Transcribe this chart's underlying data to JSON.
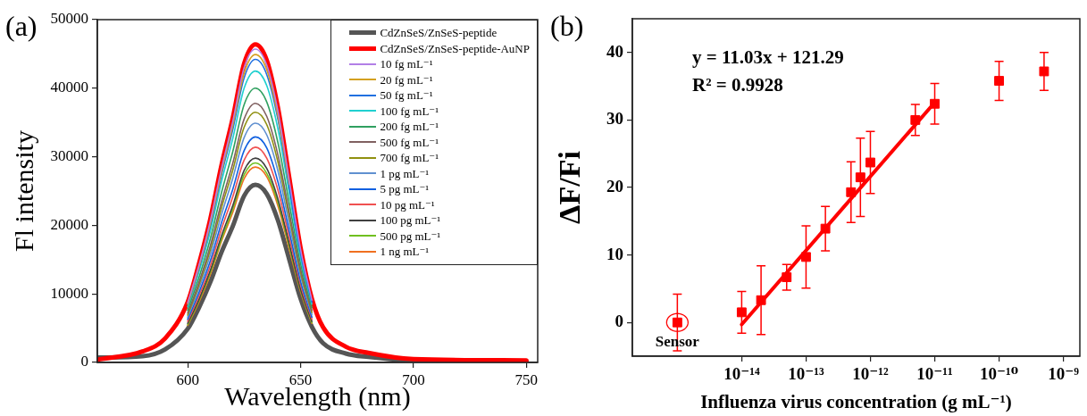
{
  "chart_data": [
    {
      "type": "line",
      "title": "(a)",
      "xlabel": "Wavelength (nm)",
      "ylabel": "Fl intensity",
      "x": [
        560,
        580,
        590,
        600,
        605,
        610,
        615,
        620,
        625,
        630,
        635,
        640,
        645,
        650,
        655,
        660,
        670,
        680,
        700,
        750
      ],
      "xlim": [
        560,
        755
      ],
      "ylim": [
        0,
        50000
      ],
      "xticks": [
        600,
        650,
        700,
        750
      ],
      "yticks": [
        0,
        10000,
        20000,
        30000,
        40000,
        50000
      ],
      "legend": "top right",
      "grid": false,
      "marker": "none",
      "series": [
        {
          "name": "CdZnSeS/ZnSeS-peptide",
          "color": "#555555",
          "values": [
            700,
            900,
            1900,
            4900,
            8000,
            11700,
            16100,
            19900,
            24300,
            25900,
            24600,
            20700,
            15000,
            9300,
            5200,
            2800,
            1300,
            800,
            300,
            200
          ]
        },
        {
          "name": "CdZnSeS/ZnSeS-peptide-AuNP",
          "color": "#ff0000",
          "values": [
            400,
            1600,
            3500,
            8800,
            14400,
            20900,
            28800,
            35700,
            43600,
            46400,
            44100,
            37100,
            26900,
            16700,
            9300,
            5100,
            2300,
            1400,
            500,
            300
          ]
        },
        {
          "name": "10 fg mL⁻¹",
          "color": "#b27fe6",
          "values": [
            null,
            null,
            null,
            8700,
            14200,
            20600,
            28300,
            35200,
            43000,
            45700,
            43400,
            36600,
            26500,
            16500,
            9100,
            null,
            null,
            null,
            null,
            null
          ]
        },
        {
          "name": "20 fg mL⁻¹",
          "color": "#d4a020",
          "values": [
            null,
            null,
            null,
            8500,
            13900,
            20200,
            27800,
            34600,
            42200,
            44900,
            42700,
            35900,
            26000,
            null,
            null,
            null,
            null,
            null,
            null,
            null
          ]
        },
        {
          "name": "50 fg mL⁻¹",
          "color": "#2070e0",
          "values": [
            null,
            null,
            null,
            8400,
            13700,
            19900,
            27400,
            34000,
            41500,
            44200,
            42000,
            35400,
            25600,
            15900,
            8800,
            null,
            null,
            null,
            null,
            null
          ]
        },
        {
          "name": "100 fg mL⁻¹",
          "color": "#20d0d0",
          "values": [
            null,
            null,
            null,
            8100,
            13200,
            19100,
            26400,
            32700,
            40000,
            42500,
            40400,
            34000,
            24700,
            15300,
            8500,
            null,
            null,
            null,
            null,
            null
          ]
        },
        {
          "name": "200 fg mL⁻¹",
          "color": "#30a060",
          "values": [
            null,
            null,
            null,
            7600,
            12400,
            18000,
            24800,
            30800,
            37600,
            40000,
            38000,
            32000,
            23200,
            14400,
            8000,
            null,
            null,
            null,
            null,
            null
          ]
        },
        {
          "name": "500 fg mL⁻¹",
          "color": "#806060",
          "values": [
            null,
            null,
            null,
            7200,
            11700,
            17000,
            23400,
            29100,
            35500,
            37800,
            35900,
            30200,
            21900,
            13600,
            7600,
            null,
            null,
            null,
            null,
            null
          ]
        },
        {
          "name": "700 fg mL⁻¹",
          "color": "#909010",
          "values": [
            null,
            null,
            null,
            6900,
            11300,
            16400,
            22600,
            28100,
            34300,
            36500,
            34700,
            29200,
            21200,
            13100,
            7300,
            null,
            null,
            null,
            null,
            null
          ]
        },
        {
          "name": "1 pg mL⁻¹",
          "color": "#6090d0",
          "values": [
            null,
            null,
            null,
            6600,
            10800,
            15700,
            21600,
            26900,
            32800,
            34900,
            33200,
            27900,
            20200,
            12600,
            7000,
            null,
            null,
            null,
            null,
            null
          ]
        },
        {
          "name": "5 pg mL⁻¹",
          "color": "#1060e0",
          "values": [
            null,
            null,
            null,
            6300,
            10200,
            14800,
            20400,
            25300,
            30900,
            32900,
            31300,
            26300,
            19100,
            11800,
            6600,
            null,
            null,
            null,
            null,
            null
          ]
        },
        {
          "name": "10 pg mL⁻¹",
          "color": "#f05050",
          "values": [
            null,
            null,
            null,
            6000,
            9700,
            14100,
            19500,
            24200,
            29500,
            31400,
            29800,
            25100,
            18200,
            11300,
            6300,
            null,
            null,
            null,
            null,
            null
          ]
        },
        {
          "name": "100 pg mL⁻¹",
          "color": "#404040",
          "values": [
            null,
            null,
            null,
            5700,
            9200,
            13400,
            18500,
            22900,
            28000,
            29800,
            28300,
            23800,
            17300,
            10700,
            6000,
            null,
            null,
            null,
            null,
            null
          ]
        },
        {
          "name": "500 pg mL⁻¹",
          "color": "#70c020",
          "values": [
            null,
            null,
            null,
            5500,
            9000,
            13100,
            18000,
            22400,
            27400,
            29100,
            27600,
            23300,
            16900,
            10500,
            5800,
            null,
            null,
            null,
            null,
            null
          ]
        },
        {
          "name": "1 ng mL⁻¹",
          "color": "#f07020",
          "values": [
            null,
            null,
            null,
            5400,
            8800,
            12800,
            17700,
            21900,
            26800,
            28500,
            27100,
            22800,
            16500,
            10300,
            5700,
            null,
            null,
            null,
            null,
            null
          ]
        }
      ]
    },
    {
      "type": "scatter",
      "title": "(b)",
      "xlabel": "Influenza virus concentration (g mL⁻¹)",
      "ylabel": "ΔF/Fi",
      "log": "x",
      "xlim": [
        2e-16,
        1.8e-09
      ],
      "ylim": [
        -5,
        45
      ],
      "xticks": [
        {
          "value": 1e-14,
          "label": "10⁻¹⁴"
        },
        {
          "value": 1e-13,
          "label": "10⁻¹³"
        },
        {
          "value": 1e-12,
          "label": "10⁻¹²"
        },
        {
          "value": 1e-11,
          "label": "10⁻¹¹"
        },
        {
          "value": 1e-10,
          "label": "10⁻¹⁰"
        },
        {
          "value": 1e-09,
          "label": "10⁻⁹"
        }
      ],
      "yticks": [
        0,
        10,
        20,
        30,
        40
      ],
      "grid": false,
      "marker": "square",
      "annotations": [
        "y = 11.03x + 121.29",
        "R² = 0.9928",
        {
          "text": "Sensor",
          "x": 1e-15,
          "y": 0
        }
      ],
      "series": [
        {
          "type": "scatter",
          "color": "#ff0000",
          "x": [
            1e-15,
            1e-14,
            2e-14,
            5e-14,
            1e-13,
            2e-13,
            5e-13,
            7e-13,
            1e-12,
            5e-12,
            1e-11,
            1e-10,
            5e-10
          ],
          "values": [
            0,
            1.5,
            3.3,
            6.7,
            9.7,
            13.9,
            19.3,
            21.5,
            23.7,
            30.0,
            32.4,
            35.8,
            37.2
          ],
          "errors": [
            4.2,
            3.1,
            5.1,
            1.9,
            4.6,
            3.3,
            4.5,
            5.8,
            4.6,
            2.3,
            3.0,
            2.9,
            2.8
          ]
        },
        {
          "type": "line",
          "color": "#ff0000",
          "marker": "none",
          "x": [
            1e-14,
            1e-11
          ],
          "values": [
            -0.3,
            32.6
          ]
        }
      ]
    }
  ]
}
